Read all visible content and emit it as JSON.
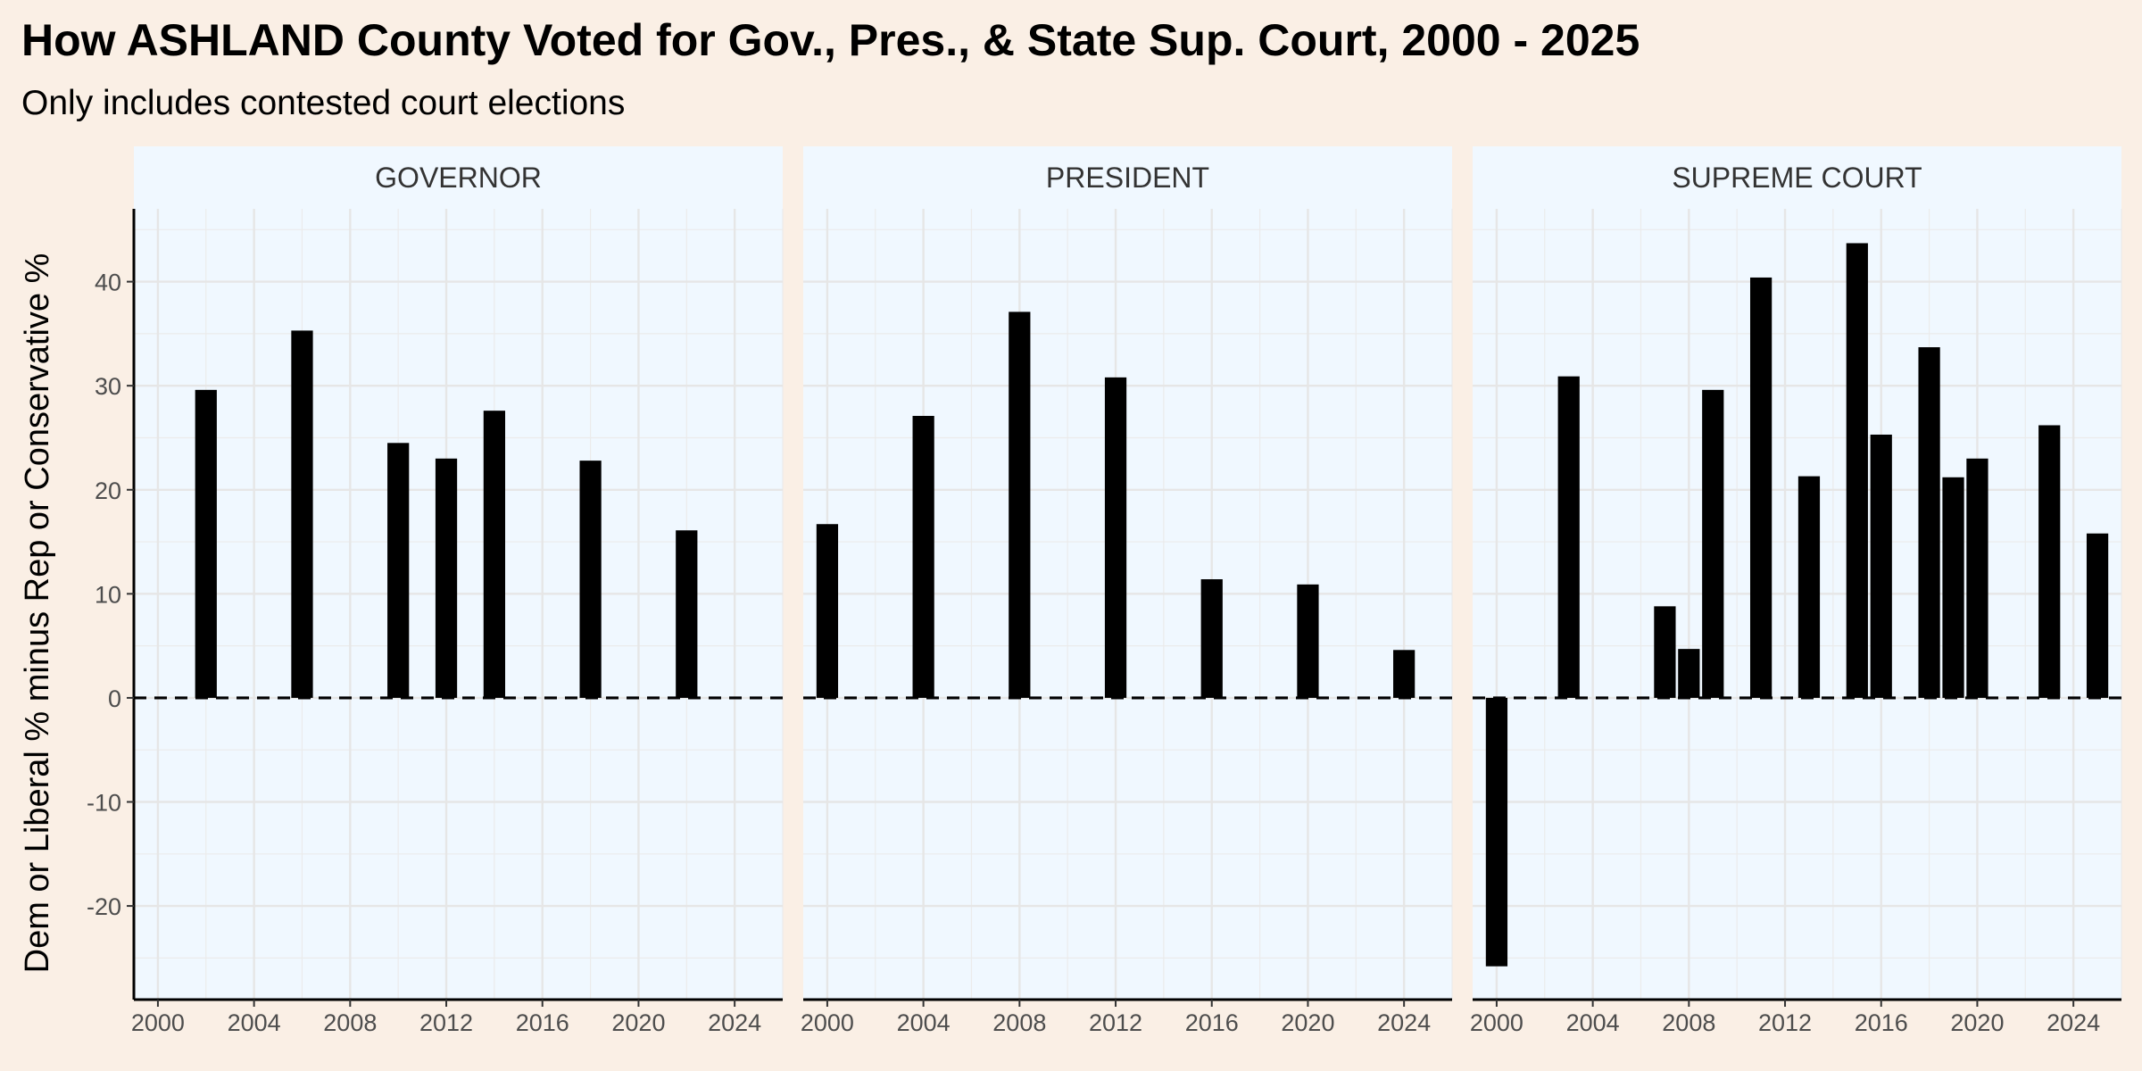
{
  "title": "How ASHLAND County Voted for Gov., Pres., & State Sup. Court, 2000 - 2025",
  "subtitle": "Only includes contested court elections",
  "chart_data": {
    "type": "bar",
    "ylabel": "Dem or Liberal % minus Rep or Conservative %",
    "xlim": [
      1999,
      2026
    ],
    "ylim": [
      -29,
      47
    ],
    "x_ticks": [
      2000,
      2004,
      2008,
      2012,
      2016,
      2020,
      2024
    ],
    "y_ticks": [
      -20,
      -10,
      0,
      10,
      20,
      30,
      40
    ],
    "grid": true,
    "panel_background": "#f0f8ff",
    "page_background": "#faefe5",
    "bar_color": "#000000",
    "reference_line": 0,
    "panels": [
      {
        "name": "GOVERNOR",
        "x": [
          2002,
          2006,
          2010,
          2012,
          2014,
          2018,
          2022
        ],
        "values": [
          29.6,
          35.3,
          24.5,
          23.0,
          27.6,
          22.8,
          16.1
        ]
      },
      {
        "name": "PRESIDENT",
        "x": [
          2000,
          2004,
          2008,
          2012,
          2016,
          2020,
          2024
        ],
        "values": [
          16.7,
          27.1,
          37.1,
          30.8,
          11.4,
          10.9,
          4.6
        ]
      },
      {
        "name": "SUPREME COURT",
        "x": [
          2000,
          2003,
          2007,
          2008,
          2009,
          2011,
          2013,
          2015,
          2016,
          2018,
          2019,
          2020,
          2023,
          2025
        ],
        "values": [
          -25.8,
          30.9,
          8.8,
          4.7,
          29.6,
          40.4,
          21.3,
          43.7,
          25.3,
          33.7,
          21.2,
          23.0,
          26.2,
          15.8
        ]
      }
    ]
  }
}
